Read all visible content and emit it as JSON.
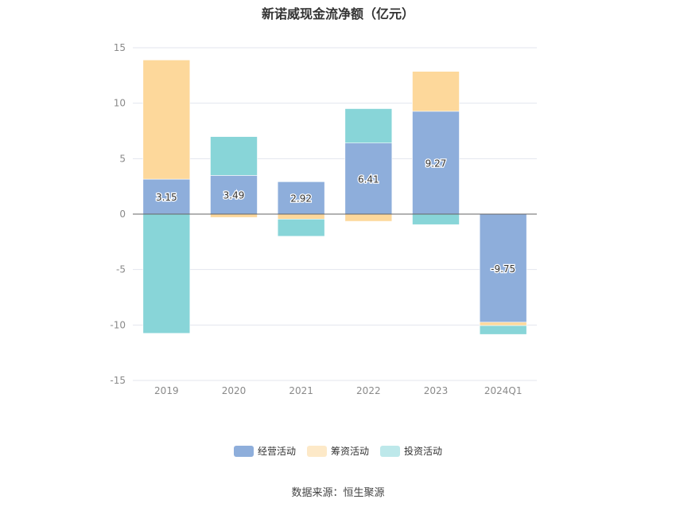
{
  "chart_data": {
    "type": "bar",
    "stacked": true,
    "title": "新诺威现金流净额（亿元）",
    "categories": [
      "2019",
      "2020",
      "2021",
      "2022",
      "2023",
      "2024Q1"
    ],
    "ylim": [
      -15,
      15
    ],
    "yticks": [
      15,
      10,
      5,
      0,
      -5,
      -10,
      -15
    ],
    "grid": true,
    "legend_position": "bottom",
    "series": [
      {
        "name": "经营活动",
        "color": "#8eaedb",
        "values": [
          3.15,
          3.49,
          2.92,
          6.41,
          9.27,
          -9.75
        ],
        "labels": [
          "3.15",
          "3.49",
          "2.92",
          "6.41",
          "9.27",
          "-9.75"
        ]
      },
      {
        "name": "筹资活动",
        "color": "#fdd89b",
        "values": [
          10.75,
          -0.3,
          -0.45,
          -0.65,
          3.6,
          -0.3
        ]
      },
      {
        "name": "投资活动",
        "color": "#88d5d8",
        "values": [
          -10.75,
          3.5,
          -1.55,
          3.1,
          -0.95,
          -0.8
        ]
      }
    ]
  },
  "legend": {
    "operating": "经营活动",
    "financing": "筹资活动",
    "investing": "投资活动",
    "investing_color": "#bde8ea",
    "financing_color": "#fde9c8"
  },
  "source": "数据来源：恒生聚源"
}
